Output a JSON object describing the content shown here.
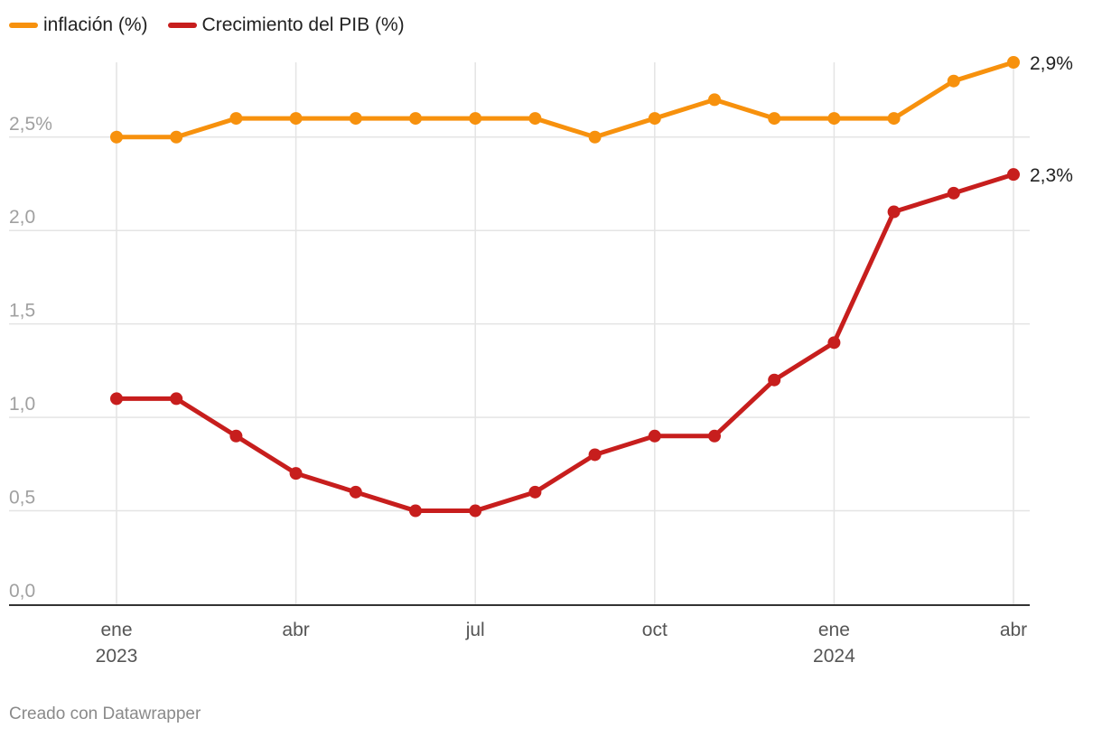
{
  "legend": [
    {
      "label": "inflación (%)",
      "color": "#f7910d"
    },
    {
      "label": "Crecimiento del PIB (%)",
      "color": "#c71e1d"
    }
  ],
  "footer": "Creado con Datawrapper",
  "chart_data": {
    "type": "line",
    "x": [
      "2023-01",
      "2023-02",
      "2023-03",
      "2023-04",
      "2023-05",
      "2023-06",
      "2023-07",
      "2023-08",
      "2023-09",
      "2023-10",
      "2023-11",
      "2023-12",
      "2024-01",
      "2024-02",
      "2024-03",
      "2024-04"
    ],
    "series": [
      {
        "name": "inflación (%)",
        "color": "#f7910d",
        "values": [
          2.5,
          2.5,
          2.6,
          2.6,
          2.6,
          2.6,
          2.6,
          2.6,
          2.5,
          2.6,
          2.7,
          2.6,
          2.6,
          2.6,
          2.8,
          2.9
        ],
        "end_label": "2,9%"
      },
      {
        "name": "Crecimiento del PIB (%)",
        "color": "#c71e1d",
        "values": [
          1.1,
          1.1,
          0.9,
          0.7,
          0.6,
          0.5,
          0.5,
          0.6,
          0.8,
          0.9,
          0.9,
          1.2,
          1.4,
          2.1,
          2.2,
          2.3
        ],
        "end_label": "2,3%"
      }
    ],
    "ylim": [
      0,
      2.9
    ],
    "y_ticks": [
      {
        "value": 0,
        "label": "0,0"
      },
      {
        "value": 0.5,
        "label": "0,5"
      },
      {
        "value": 1.0,
        "label": "1,0"
      },
      {
        "value": 1.5,
        "label": "1,5"
      },
      {
        "value": 2.0,
        "label": "2,0"
      },
      {
        "value": 2.5,
        "label": "2,5%"
      }
    ],
    "x_ticks": [
      {
        "index": 0,
        "label": "ene",
        "sublabel": "2023"
      },
      {
        "index": 3,
        "label": "abr",
        "sublabel": ""
      },
      {
        "index": 6,
        "label": "jul",
        "sublabel": ""
      },
      {
        "index": 9,
        "label": "oct",
        "sublabel": ""
      },
      {
        "index": 12,
        "label": "ene",
        "sublabel": "2024"
      },
      {
        "index": 15,
        "label": "abr",
        "sublabel": ""
      }
    ],
    "grid": true
  }
}
